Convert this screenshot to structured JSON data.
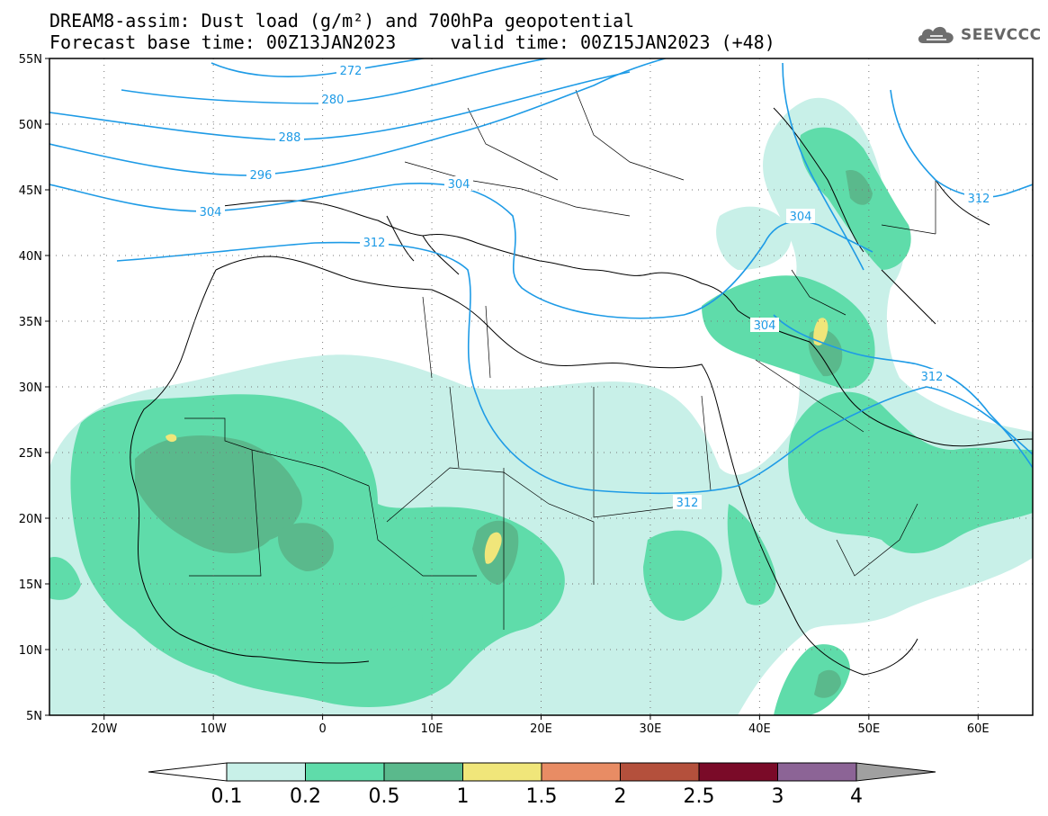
{
  "title": {
    "line1": "DREAM8-assim: Dust load (g/m²) and 700hPa geopotential",
    "line2": "Forecast base time: 00Z13JAN2023     valid time: 00Z15JAN2023 (+48)"
  },
  "logo": {
    "text": "SEEVCCC",
    "icon": "cloud-icon"
  },
  "map": {
    "lon_range": [
      -25,
      65
    ],
    "lat_range": [
      5,
      55
    ],
    "lat_labels": [
      "5N",
      "10N",
      "15N",
      "20N",
      "25N",
      "30N",
      "35N",
      "40N",
      "45N",
      "50N",
      "55N"
    ],
    "lon_labels": [
      "20W",
      "10W",
      "0",
      "10E",
      "20E",
      "30E",
      "40E",
      "50E",
      "60E"
    ],
    "contour_labels": [
      "272",
      "280",
      "288",
      "296",
      "304",
      "304",
      "304",
      "312",
      "304",
      "312",
      "312",
      "312"
    ]
  },
  "colorbar": {
    "labels": [
      "0.1",
      "0.2",
      "0.5",
      "1",
      "1.5",
      "2",
      "2.5",
      "3",
      "4"
    ],
    "colors": [
      "#c8f0e8",
      "#5fdcaa",
      "#5ab98c",
      "#f0e67a",
      "#e88c64",
      "#b4503c",
      "#7a0a28",
      "#8c6496",
      "#a0a0a0"
    ]
  },
  "colors": {
    "contour": "#1e9be6",
    "dust_low": "#c8f0e8",
    "dust_mid": "#5fdcaa",
    "dust_high": "#5ab98c",
    "dust_peak": "#f0e67a"
  }
}
